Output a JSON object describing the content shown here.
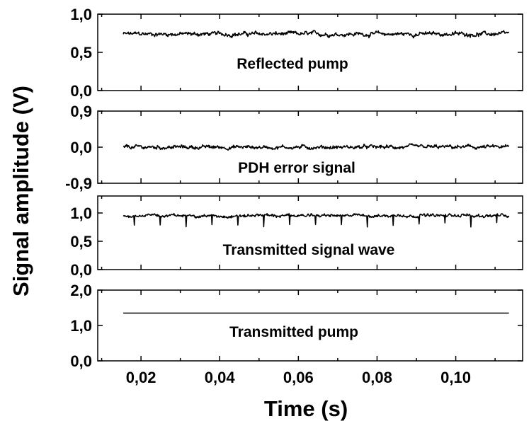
{
  "chart_data": {
    "type": "line",
    "xlabel": "Time (s)",
    "ylabel": "Signal amplitude (V)",
    "xlim": [
      0.009,
      0.117
    ],
    "xticks": [
      0.02,
      0.04,
      0.06,
      0.08,
      0.1
    ],
    "xtick_labels": [
      "0,02",
      "0,04",
      "0,06",
      "0,08",
      "0,10"
    ],
    "x_data_range": [
      0.0155,
      0.1135
    ],
    "legend": "none",
    "grid": false,
    "panels": [
      {
        "label": "Reflected pump",
        "ylim": [
          0.0,
          1.0
        ],
        "yticks": [
          0.0,
          0.5,
          1.0
        ],
        "ytick_labels": [
          "0,0",
          "0,5",
          "1,0"
        ],
        "series": [
          {
            "mean": 0.74,
            "noise_amplitude": 0.04
          }
        ]
      },
      {
        "label": "PDH error signal",
        "ylim": [
          -0.9,
          0.9
        ],
        "yticks": [
          -0.9,
          0.0,
          0.9
        ],
        "ytick_labels": [
          "-0,9",
          "0,0",
          "0,9"
        ],
        "series": [
          {
            "mean": 0.0,
            "noise_amplitude": 0.07
          }
        ]
      },
      {
        "label": "Transmitted signal wave",
        "ylim": [
          0.0,
          1.3
        ],
        "yticks": [
          0.0,
          0.5,
          1.0
        ],
        "ytick_labels": [
          "0,0",
          "0,5",
          "1,0"
        ],
        "series": [
          {
            "mean": 0.95,
            "noise_amplitude": 0.04,
            "dips_to": 0.75
          }
        ]
      },
      {
        "label": "Transmitted pump",
        "ylim": [
          0.0,
          2.0
        ],
        "yticks": [
          0.0,
          1.0,
          2.0
        ],
        "ytick_labels": [
          "0,0",
          "1,0",
          "2,0"
        ],
        "series": [
          {
            "mean": 1.35,
            "noise_amplitude": 0.0
          }
        ]
      }
    ]
  }
}
